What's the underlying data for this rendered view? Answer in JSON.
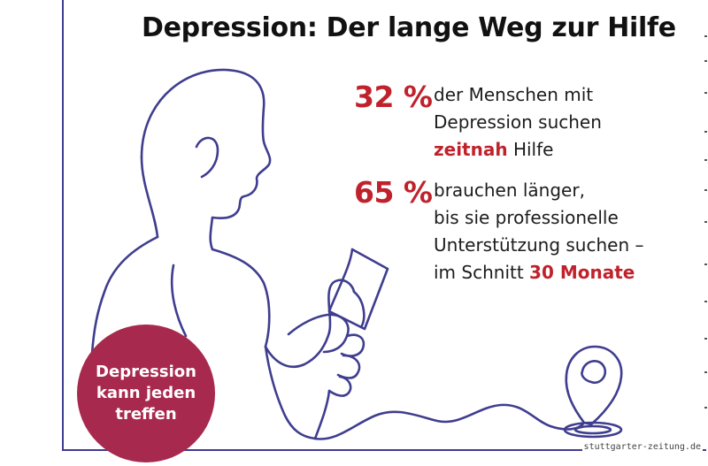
{
  "title": "Depression: Der lange Weg zur Hilfe",
  "stats": [
    {
      "percent": "32 %",
      "line1": "der Menschen mit",
      "line2": "Depression suchen",
      "line3_highlight": "zeitnah",
      "line3_rest": "Hilfe"
    },
    {
      "percent": "65 %",
      "line1": "brauchen länger,",
      "line2": "bis sie professionelle",
      "line3": "Unterstützung suchen –",
      "line4_prefix": "im Schnitt",
      "line4_highlight": "30 Monate"
    }
  ],
  "badge": {
    "line1": "Depression",
    "line2": "kann jeden",
    "line3": "treffen"
  },
  "footer": "stuttgarter-zeitung.de",
  "colors": {
    "accent_red": "#c0222c",
    "badge_bg": "#a8294e",
    "line_art": "#3f3d8f"
  }
}
